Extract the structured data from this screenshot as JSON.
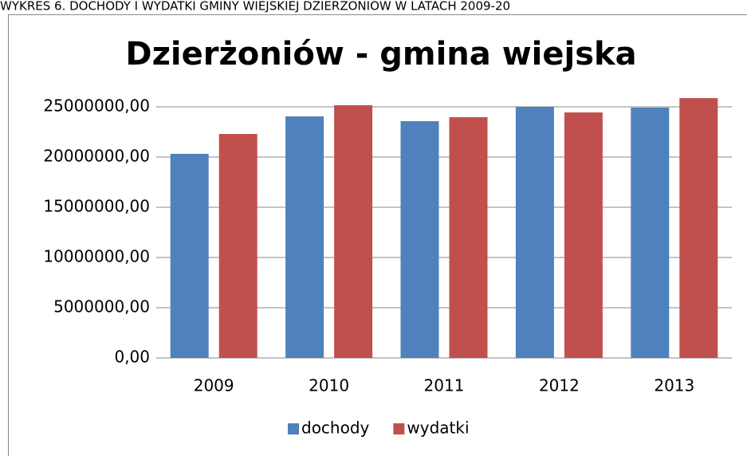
{
  "caption": "WYKRES 6. DOCHODY I WYDATKI GMINY WIEJSKIEJ DZIERŻONIÓW W LATACH 2009-20",
  "chart_data": {
    "type": "bar",
    "title": "Dzierżoniów  - gmina wiejska",
    "categories": [
      "2009",
      "2010",
      "2011",
      "2012",
      "2013"
    ],
    "series": [
      {
        "name": "dochody",
        "color": "#4f81bd",
        "values": [
          20320000,
          24050000,
          23570000,
          25000000,
          24920000
        ]
      },
      {
        "name": "wydatki",
        "color": "#c0504d",
        "values": [
          22300000,
          25160000,
          23970000,
          24440000,
          25870000
        ]
      }
    ],
    "ylim": [
      0,
      25000000
    ],
    "yticks": [
      {
        "value": 0,
        "label": "0,00"
      },
      {
        "value": 5000000,
        "label": "5000000,00"
      },
      {
        "value": 10000000,
        "label": "10000000,00"
      },
      {
        "value": 15000000,
        "label": "15000000,00"
      },
      {
        "value": 20000000,
        "label": "20000000,00"
      },
      {
        "value": 25000000,
        "label": "25000000,00"
      }
    ],
    "grid": true,
    "legend": "bottom"
  }
}
